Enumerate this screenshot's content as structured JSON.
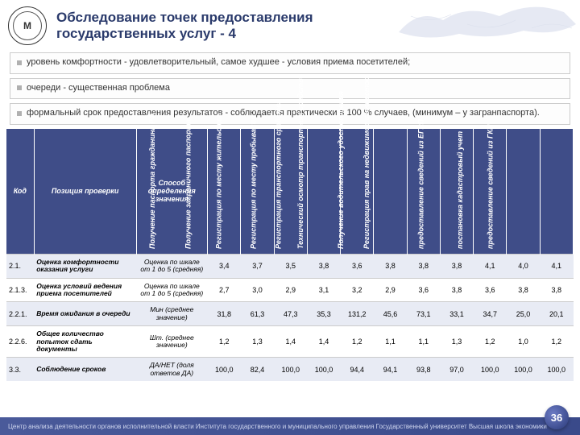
{
  "title_line1": "Обследование точек предоставления",
  "title_line2": "государственных услуг - 4",
  "logo_letter": "М",
  "bullets": [
    "уровень комфортности - удовлетворительный, самое худшее - условия приема посетителей;",
    "очереди - существенная проблема",
    "формальный срок предоставления результатов - соблюдается практически в 100 % случаев, (минимум – у загранпаспорта)."
  ],
  "head": {
    "code": "Код",
    "position": "Позиция проверки",
    "method": "Способ определения значения"
  },
  "cols": [
    "Получение паспорта гражданина РФ",
    "Получение заграничного паспорта",
    "Регистрация по месту жительства",
    "Регистрация по месту пребывания",
    "Регистрация транспортного средства",
    "Технический осмотр транспортных средств",
    "Получение водительского удостоверения",
    "Регистрация прав на недвижимое имущество",
    "предоставление сведений из ЕГРП",
    "постановка кадастровый учет",
    "предоставление сведений из ГКН"
  ],
  "rows": [
    {
      "code": "2.1.",
      "pos": "Оценка комфортности оказания услуги",
      "meth": "Оценка по шкале от 1 до 5 (средняя)",
      "v": [
        "3,4",
        "3,7",
        "3,5",
        "3,8",
        "3,6",
        "3,8",
        "3,8",
        "3,8",
        "4,1",
        "4,0",
        "4,1"
      ]
    },
    {
      "code": "2.1.3.",
      "pos": "Оценка условий ведения приема посетителей",
      "meth": "Оценка по шкале от 1 до 5 (средняя)",
      "v": [
        "2,7",
        "3,0",
        "2,9",
        "3,1",
        "3,2",
        "2,9",
        "3,6",
        "3,8",
        "3,6",
        "3,8",
        "3,8"
      ]
    },
    {
      "code": "2.2.1.",
      "pos": "Время ожидания в очереди",
      "meth": "Мин (среднее значение)",
      "v": [
        "31,8",
        "61,3",
        "47,3",
        "35,3",
        "131,2",
        "45,6",
        "73,1",
        "33,1",
        "34,7",
        "25,0",
        "20,1"
      ]
    },
    {
      "code": "2.2.6.",
      "pos": "Общее количество попыток сдать документы",
      "meth": "Шт. (среднее значение)",
      "v": [
        "1,2",
        "1,3",
        "1,4",
        "1,4",
        "1,2",
        "1,1",
        "1,1",
        "1,3",
        "1,2",
        "1,0",
        "1,2"
      ]
    },
    {
      "code": "3.3.",
      "pos": "Соблюдение сроков",
      "meth": "ДА/НЕТ (доля ответов ДА)",
      "v": [
        "100,0",
        "82,4",
        "100,0",
        "100,0",
        "94,4",
        "94,1",
        "93,8",
        "97,0",
        "100,0",
        "100,0",
        "100,0"
      ]
    }
  ],
  "footer_left": "Центр анализа деятельности органов исполнительной власти Института государственного и муниципального управления    Государственный университет    Высшая школа экономики",
  "page_number": "36",
  "colors": {
    "title": "#2a3a6b",
    "thead_bg": "#3f4d88",
    "row_odd": "#e8ebf4",
    "row_even": "#ffffff",
    "footer_bg": "#3a4a8a"
  }
}
